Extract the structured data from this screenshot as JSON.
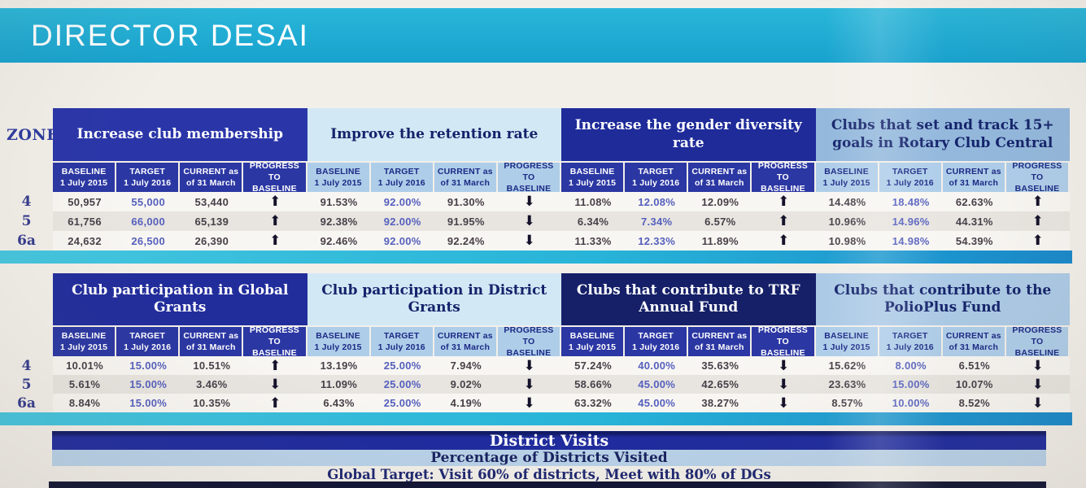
{
  "header": {
    "title": "DIRECTOR DESAI"
  },
  "zone_label": "ZONE",
  "zones": [
    "4",
    "5",
    "6a"
  ],
  "subheaders": {
    "baseline_l1": "BASELINE",
    "baseline_l2": "1 July 2015",
    "target_l1": "TARGET",
    "target_l2": "1 July 2016",
    "current_l1": "CURRENT as",
    "current_l2": "of 31 March",
    "progress": "PROGRESS TO BASELINE"
  },
  "tables": [
    {
      "groups": [
        {
          "title": "Increase club membership",
          "rows": [
            {
              "baseline": "50,957",
              "target": "55,000",
              "current": "53,440",
              "progress": "up"
            },
            {
              "baseline": "61,756",
              "target": "66,000",
              "current": "65,139",
              "progress": "up"
            },
            {
              "baseline": "24,632",
              "target": "26,500",
              "current": "26,390",
              "progress": "up"
            }
          ]
        },
        {
          "title": "Improve the retention rate",
          "rows": [
            {
              "baseline": "91.53%",
              "target": "92.00%",
              "current": "91.30%",
              "progress": "down"
            },
            {
              "baseline": "92.38%",
              "target": "92.00%",
              "current": "91.95%",
              "progress": "down"
            },
            {
              "baseline": "92.46%",
              "target": "92.00%",
              "current": "92.24%",
              "progress": "down"
            }
          ]
        },
        {
          "title": "Increase the gender diversity rate",
          "rows": [
            {
              "baseline": "11.08%",
              "target": "12.08%",
              "current": "12.09%",
              "progress": "up"
            },
            {
              "baseline": "6.34%",
              "target": "7.34%",
              "current": "6.57%",
              "progress": "up"
            },
            {
              "baseline": "11.33%",
              "target": "12.33%",
              "current": "11.89%",
              "progress": "up"
            }
          ]
        },
        {
          "title": "Clubs that set and track 15+ goals in Rotary Club Central",
          "rows": [
            {
              "baseline": "14.48%",
              "target": "18.48%",
              "current": "62.63%",
              "progress": "up"
            },
            {
              "baseline": "10.96%",
              "target": "14.96%",
              "current": "44.31%",
              "progress": "up"
            },
            {
              "baseline": "10.98%",
              "target": "14.98%",
              "current": "54.39%",
              "progress": "up"
            }
          ]
        }
      ]
    },
    {
      "groups": [
        {
          "title": "Club participation in Global Grants",
          "rows": [
            {
              "baseline": "10.01%",
              "target": "15.00%",
              "current": "10.51%",
              "progress": "up"
            },
            {
              "baseline": "5.61%",
              "target": "15.00%",
              "current": "3.46%",
              "progress": "down"
            },
            {
              "baseline": "8.84%",
              "target": "15.00%",
              "current": "10.35%",
              "progress": "up"
            }
          ]
        },
        {
          "title": "Club participation in District Grants",
          "rows": [
            {
              "baseline": "13.19%",
              "target": "25.00%",
              "current": "7.94%",
              "progress": "down"
            },
            {
              "baseline": "11.09%",
              "target": "25.00%",
              "current": "9.02%",
              "progress": "down"
            },
            {
              "baseline": "6.43%",
              "target": "25.00%",
              "current": "4.19%",
              "progress": "down"
            }
          ]
        },
        {
          "title": "Clubs that contribute to TRF Annual Fund",
          "rows": [
            {
              "baseline": "57.24%",
              "target": "40.00%",
              "current": "35.63%",
              "progress": "down"
            },
            {
              "baseline": "58.66%",
              "target": "45.00%",
              "current": "42.65%",
              "progress": "down"
            },
            {
              "baseline": "63.32%",
              "target": "45.00%",
              "current": "38.27%",
              "progress": "down"
            }
          ]
        },
        {
          "title": "Clubs that contribute to the PolioPlus Fund",
          "rows": [
            {
              "baseline": "15.62%",
              "target": "8.00%",
              "current": "6.51%",
              "progress": "down"
            },
            {
              "baseline": "23.63%",
              "target": "15.00%",
              "current": "10.07%",
              "progress": "down"
            },
            {
              "baseline": "8.57%",
              "target": "10.00%",
              "current": "8.52%",
              "progress": "down"
            }
          ]
        }
      ]
    }
  ],
  "footer": {
    "title": "District Visits",
    "subtitle": "Percentage of Districts Visited",
    "note": "Global Target: Visit 60% of districts, Meet with 80% of DGs"
  },
  "colors": {
    "banner_cyan": "#1fadd6",
    "group_header_royal": "#2a35a8",
    "group_header_navy": "#152068",
    "group_header_pale_blue": "#d3e8f5",
    "group_header_steel_blue": "#93b8dc",
    "subheader_dark": "#2b37a3",
    "subheader_light": "#aecde9",
    "target_value_text": "#5560bd",
    "arrow": "#14122a",
    "divider_cyan": "#28b4d8",
    "footer_bar_navy": "#1f2b9e",
    "footer_bar_light": "#b9d2e9"
  }
}
